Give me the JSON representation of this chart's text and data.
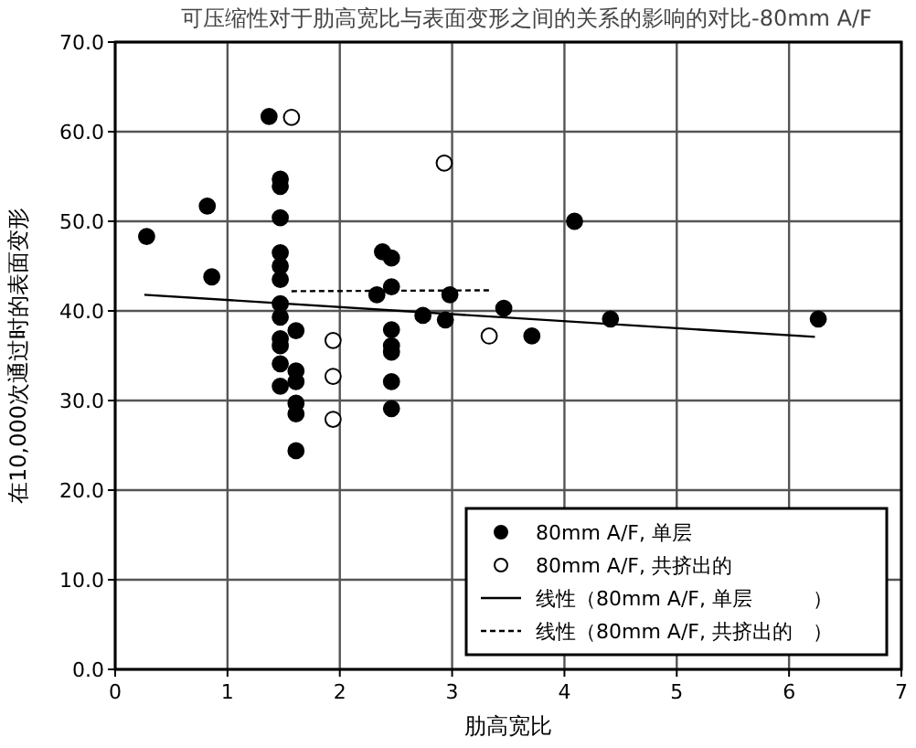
{
  "chart_data": {
    "type": "scatter",
    "title": "可压缩性对于肋高宽比与表面变形之间的关系的影响的对比-80mm A/F",
    "xlabel": "肋高宽比",
    "ylabel": "在10,000次通过时的表面变形",
    "xlim": [
      0,
      7
    ],
    "xticks": [
      0,
      1,
      2,
      3,
      4,
      5,
      6,
      7
    ],
    "ylim": [
      0,
      70
    ],
    "yticks": [
      {
        "value": 0,
        "label": "0.0"
      },
      {
        "value": 10,
        "label": "10.0"
      },
      {
        "value": 20,
        "label": "20.0"
      },
      {
        "value": 30,
        "label": "30.0"
      },
      {
        "value": 40,
        "label": "40.0"
      },
      {
        "value": 50,
        "label": "50.0"
      },
      {
        "value": 60,
        "label": "60.0"
      },
      {
        "value": 70,
        "label": "70.0"
      }
    ],
    "grid": true,
    "legend": "bottom right",
    "series": [
      {
        "name": "80mm A/F, 单层",
        "color": "#000000",
        "marker": "circle",
        "x": [
          0.28,
          0.82,
          0.86,
          1.37,
          1.47,
          1.47,
          1.47,
          1.47,
          1.47,
          1.47,
          1.47,
          1.47,
          1.47,
          1.47,
          1.47,
          1.47,
          1.61,
          1.61,
          1.61,
          1.61,
          1.61,
          1.61,
          2.38,
          2.46,
          2.46,
          2.33,
          2.46,
          2.46,
          2.46,
          2.46,
          2.46,
          2.74,
          2.94,
          2.98,
          3.46,
          3.71,
          4.09,
          4.41,
          6.26
        ],
        "values": [
          48.3,
          51.7,
          43.8,
          61.7,
          54.7,
          53.9,
          50.4,
          46.5,
          45.0,
          43.5,
          40.8,
          39.3,
          36.9,
          36.1,
          34.1,
          31.6,
          37.8,
          33.3,
          32.1,
          29.7,
          28.5,
          24.4,
          46.6,
          45.9,
          42.7,
          41.8,
          37.9,
          36.1,
          35.4,
          32.1,
          29.1,
          39.5,
          39.0,
          41.8,
          40.3,
          37.2,
          50.0,
          39.1,
          39.1
        ]
      },
      {
        "name": "80mm A/F, 共挤出的",
        "color": "#ffffff",
        "marker": "circle",
        "x": [
          1.57,
          2.93,
          1.94,
          1.94,
          1.94,
          3.33
        ],
        "values": [
          61.6,
          56.5,
          36.7,
          32.7,
          27.9,
          37.2
        ]
      },
      {
        "name": "线性（80mm A/F, 单层　　　）",
        "type": "line",
        "color": "#000000",
        "line_style": "solid",
        "x": [
          0.26,
          6.23
        ],
        "values": [
          41.8,
          37.1
        ]
      },
      {
        "name": "线性（80mm A/F, 共挤出的　）",
        "type": "line",
        "color": "#000000",
        "line_style": "dashed",
        "x": [
          1.57,
          3.34
        ],
        "values": [
          42.2,
          42.3
        ]
      }
    ]
  }
}
